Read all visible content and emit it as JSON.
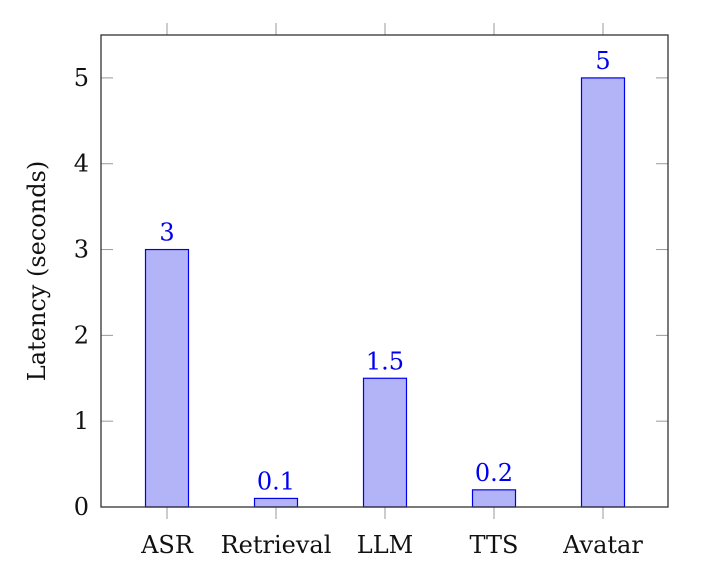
{
  "chart_data": {
    "type": "bar",
    "title": "",
    "xlabel": "",
    "ylabel": "Latency (seconds)",
    "categories": [
      "ASR",
      "Retrieval",
      "LLM",
      "TTS",
      "Avatar"
    ],
    "values": [
      3,
      0.1,
      1.5,
      0.2,
      5
    ],
    "value_labels": [
      "3",
      "0.1",
      "1.5",
      "0.2",
      "5"
    ],
    "ylim": [
      0,
      5.5
    ],
    "yticks": [
      0,
      1,
      2,
      3,
      4,
      5
    ],
    "ytick_labels": [
      "0",
      "1",
      "2",
      "3",
      "4",
      "5"
    ],
    "grid": false,
    "legend": null,
    "colors": {
      "bar_fill": "#b3b3f7",
      "bar_stroke": "#0000ee",
      "label_color": "#0000ee",
      "axis": "#333333",
      "tick": "#999999"
    }
  }
}
